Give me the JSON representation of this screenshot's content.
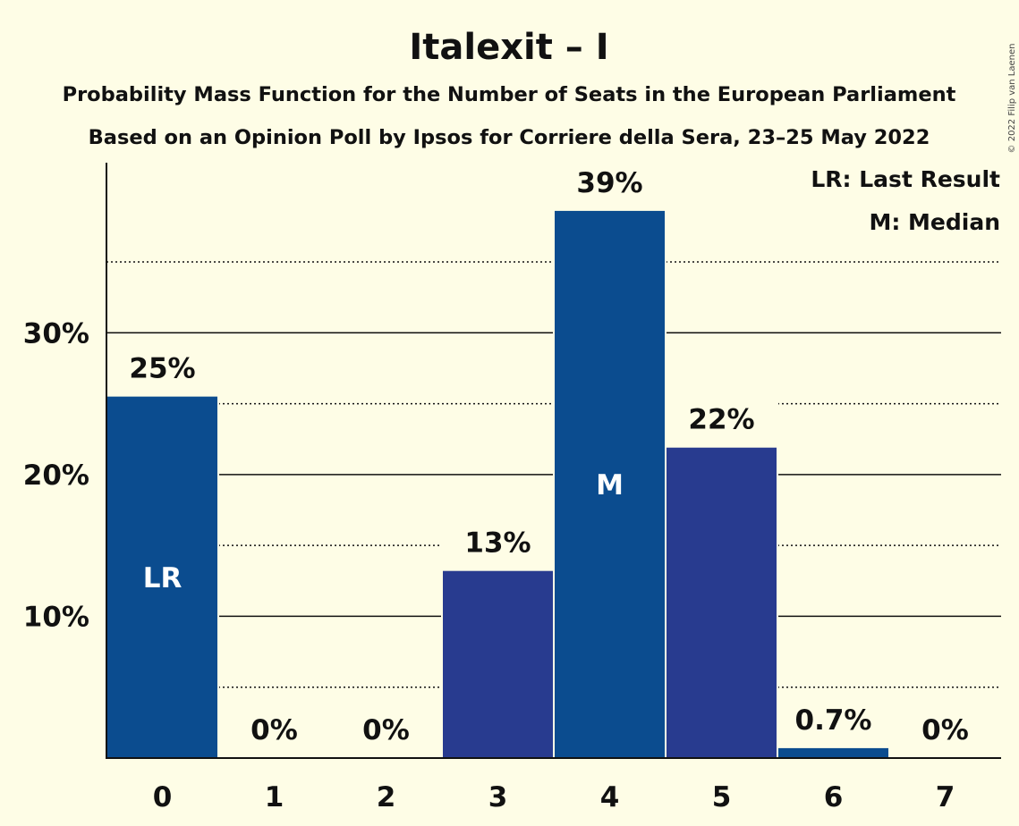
{
  "chart_data": {
    "type": "bar",
    "title": "Italexit – I",
    "subtitle": "Probability Mass Function for the Number of Seats in the European Parliament",
    "subtitle2": "Based on an Opinion Poll by Ipsos for Corriere della Sera, 23–25 May 2022",
    "categories": [
      "0",
      "1",
      "2",
      "3",
      "4",
      "5",
      "6",
      "7"
    ],
    "values": [
      25.5,
      0,
      0,
      13.2,
      38.6,
      21.9,
      0.7,
      0
    ],
    "data_labels": [
      "25%",
      "0%",
      "0%",
      "13%",
      "39%",
      "22%",
      "0.7%",
      "0%"
    ],
    "bar_colors": [
      "#0B4C8F",
      "#0B4C8F",
      "#0B4C8F",
      "#283B8F",
      "#0B4C8F",
      "#283B8F",
      "#0B4C8F",
      "#0B4C8F"
    ],
    "inside_labels": {
      "0": "LR",
      "4": "M"
    },
    "yticks": [
      10,
      20,
      30
    ],
    "ytick_labels": [
      "10%",
      "20%",
      "30%"
    ],
    "dotted_gridlines": [
      5,
      15,
      25,
      35
    ],
    "ylim": [
      0,
      42
    ],
    "legend": [
      "LR: Last Result",
      "M: Median"
    ],
    "legend_position": "top-right",
    "copyright": "© 2022 Filip van Laenen"
  }
}
